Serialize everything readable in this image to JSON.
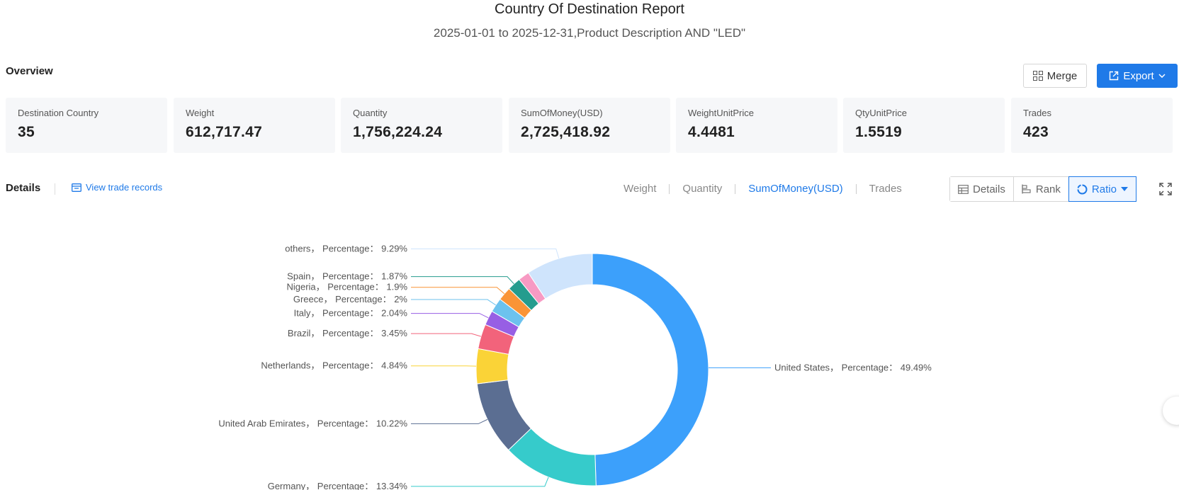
{
  "header": {
    "title": "Country Of Destination Report",
    "subtitle": "2025-01-01 to 2025-12-31,Product Description AND \"LED\""
  },
  "overview": {
    "label": "Overview",
    "merge_label": "Merge",
    "export_label": "Export",
    "stats": [
      {
        "label": "Destination Country",
        "value": "35"
      },
      {
        "label": "Weight",
        "value": "612,717.47"
      },
      {
        "label": "Quantity",
        "value": "1,756,224.24"
      },
      {
        "label": "SumOfMoney(USD)",
        "value": "2,725,418.92"
      },
      {
        "label": "WeightUnitPrice",
        "value": "4.4481"
      },
      {
        "label": "QtyUnitPrice",
        "value": "1.5519"
      },
      {
        "label": "Trades",
        "value": "423"
      }
    ]
  },
  "details": {
    "label": "Details",
    "view_records": "View trade records",
    "metric_tabs": [
      "Weight",
      "Quantity",
      "SumOfMoney(USD)",
      "Trades"
    ],
    "active_metric": "SumOfMoney(USD)",
    "views": [
      "Details",
      "Rank",
      "Ratio"
    ],
    "active_view": "Ratio"
  },
  "colors": {
    "accent": "#1f7ae8"
  },
  "chart_data": {
    "type": "pie",
    "style": "donut",
    "label_template": "{name}， Percentage： {pct}%",
    "slices": [
      {
        "name": "United States",
        "pct": 49.49,
        "color": "#3ca0fb"
      },
      {
        "name": "Germany",
        "pct": 13.34,
        "color": "#36cbcb"
      },
      {
        "name": "United Arab Emirates",
        "pct": 10.22,
        "color": "#5b6e92"
      },
      {
        "name": "Netherlands",
        "pct": 4.84,
        "color": "#fad337"
      },
      {
        "name": "Brazil",
        "pct": 3.45,
        "color": "#f2637b"
      },
      {
        "name": "Italy",
        "pct": 2.04,
        "color": "#975fe4"
      },
      {
        "name": "Greece",
        "pct": 2,
        "color": "#6cc2ee"
      },
      {
        "name": "Nigeria",
        "pct": 1.9,
        "color": "#fa9437"
      },
      {
        "name": "Spain",
        "pct": 1.87,
        "color": "#259c8e"
      },
      {
        "name": "",
        "pct": 1.56,
        "color": "#f79ac3"
      },
      {
        "name": "others",
        "pct": 9.29,
        "color": "#cfe4fc"
      }
    ]
  }
}
